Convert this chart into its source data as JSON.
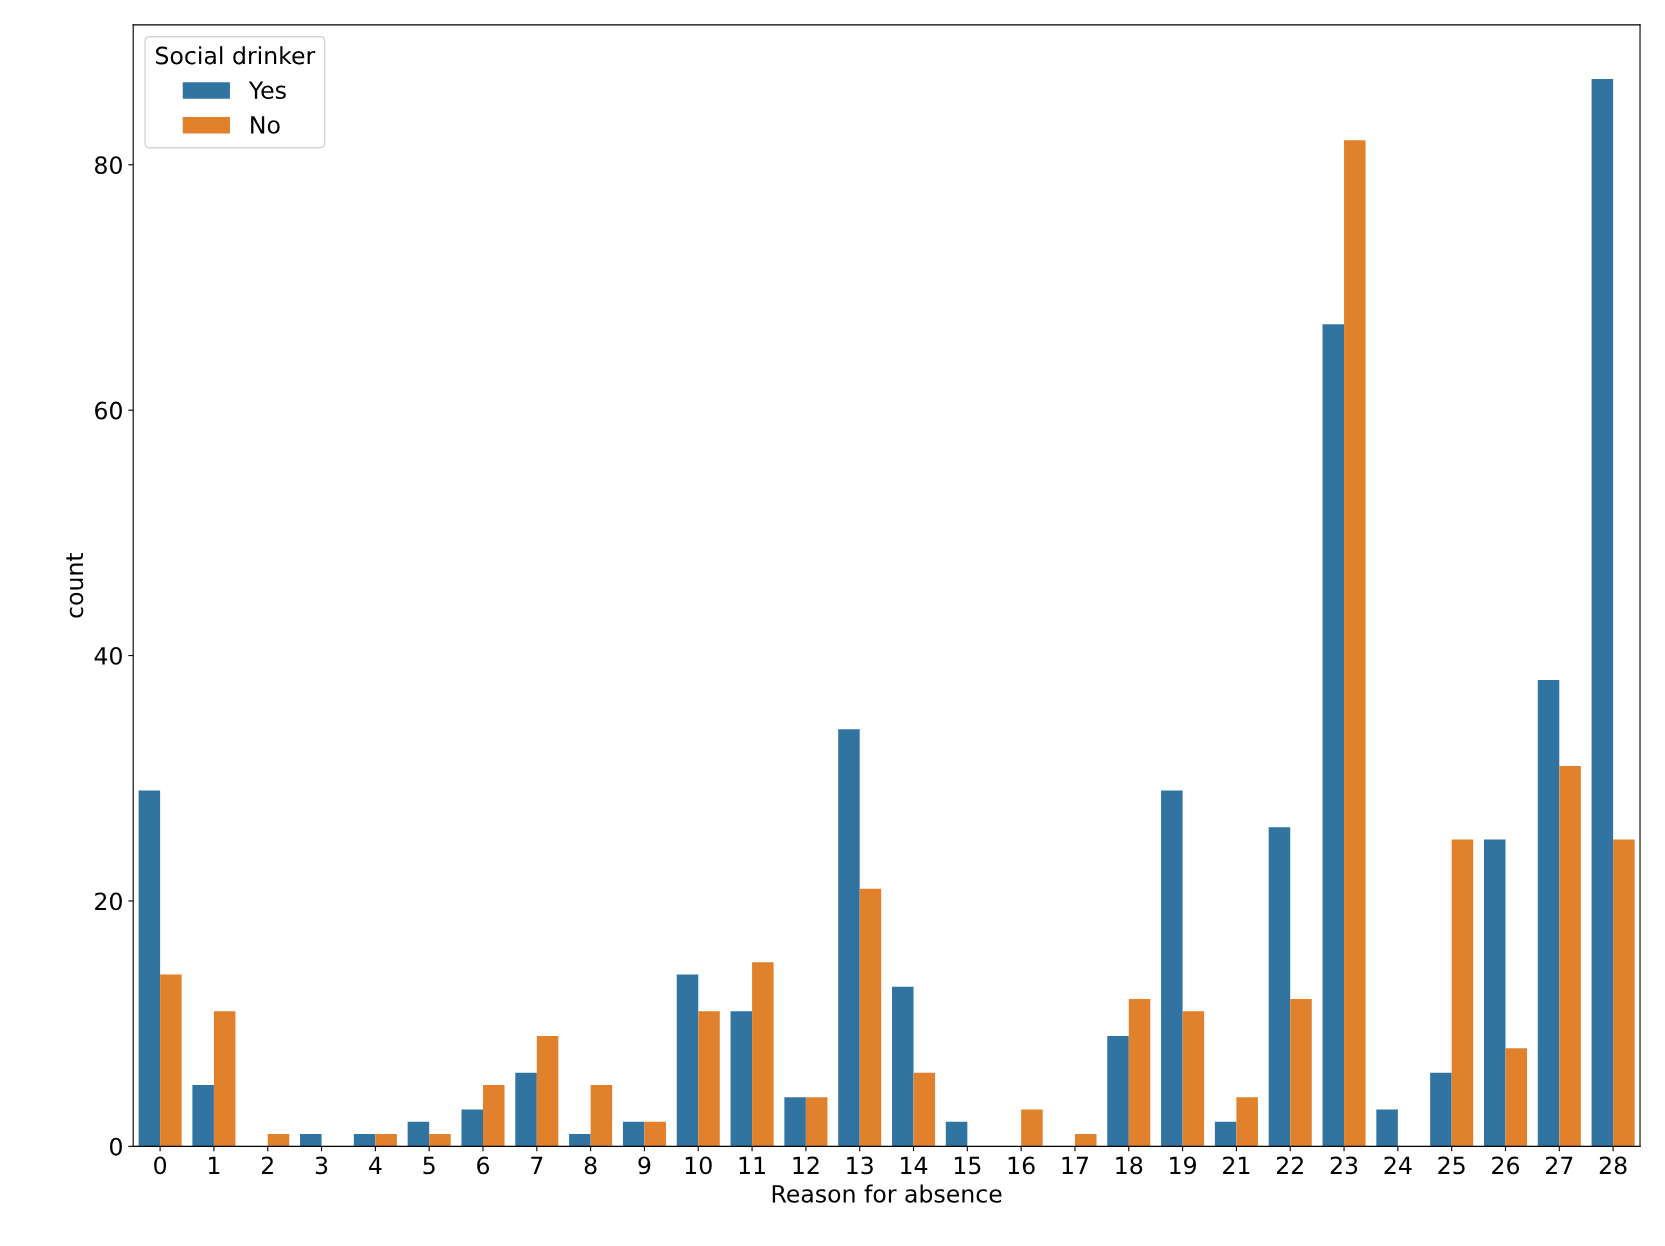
{
  "chart_data": {
    "type": "bar",
    "xlabel": "Reason for absence",
    "ylabel": "count",
    "legend_title": "Social drinker",
    "categories": [
      "0",
      "1",
      "2",
      "3",
      "4",
      "5",
      "6",
      "7",
      "8",
      "9",
      "10",
      "11",
      "12",
      "13",
      "14",
      "15",
      "16",
      "17",
      "18",
      "19",
      "21",
      "22",
      "23",
      "24",
      "25",
      "26",
      "27",
      "28"
    ],
    "series": [
      {
        "name": "Yes",
        "color": "#3274a1",
        "values": [
          29,
          5,
          0,
          1,
          1,
          2,
          3,
          6,
          1,
          2,
          14,
          11,
          4,
          34,
          13,
          2,
          0,
          0,
          9,
          29,
          2,
          26,
          67,
          3,
          6,
          25,
          38,
          87
        ]
      },
      {
        "name": "No",
        "color": "#e1812c",
        "values": [
          14,
          11,
          1,
          0,
          1,
          1,
          5,
          9,
          5,
          2,
          11,
          15,
          4,
          21,
          6,
          0,
          3,
          1,
          12,
          11,
          4,
          12,
          82,
          0,
          25,
          8,
          31,
          25
        ]
      }
    ],
    "ylim": [
      0,
      91.4
    ],
    "yticks": [
      0,
      20,
      40,
      60,
      80
    ],
    "grid": false,
    "legend": "top left"
  }
}
